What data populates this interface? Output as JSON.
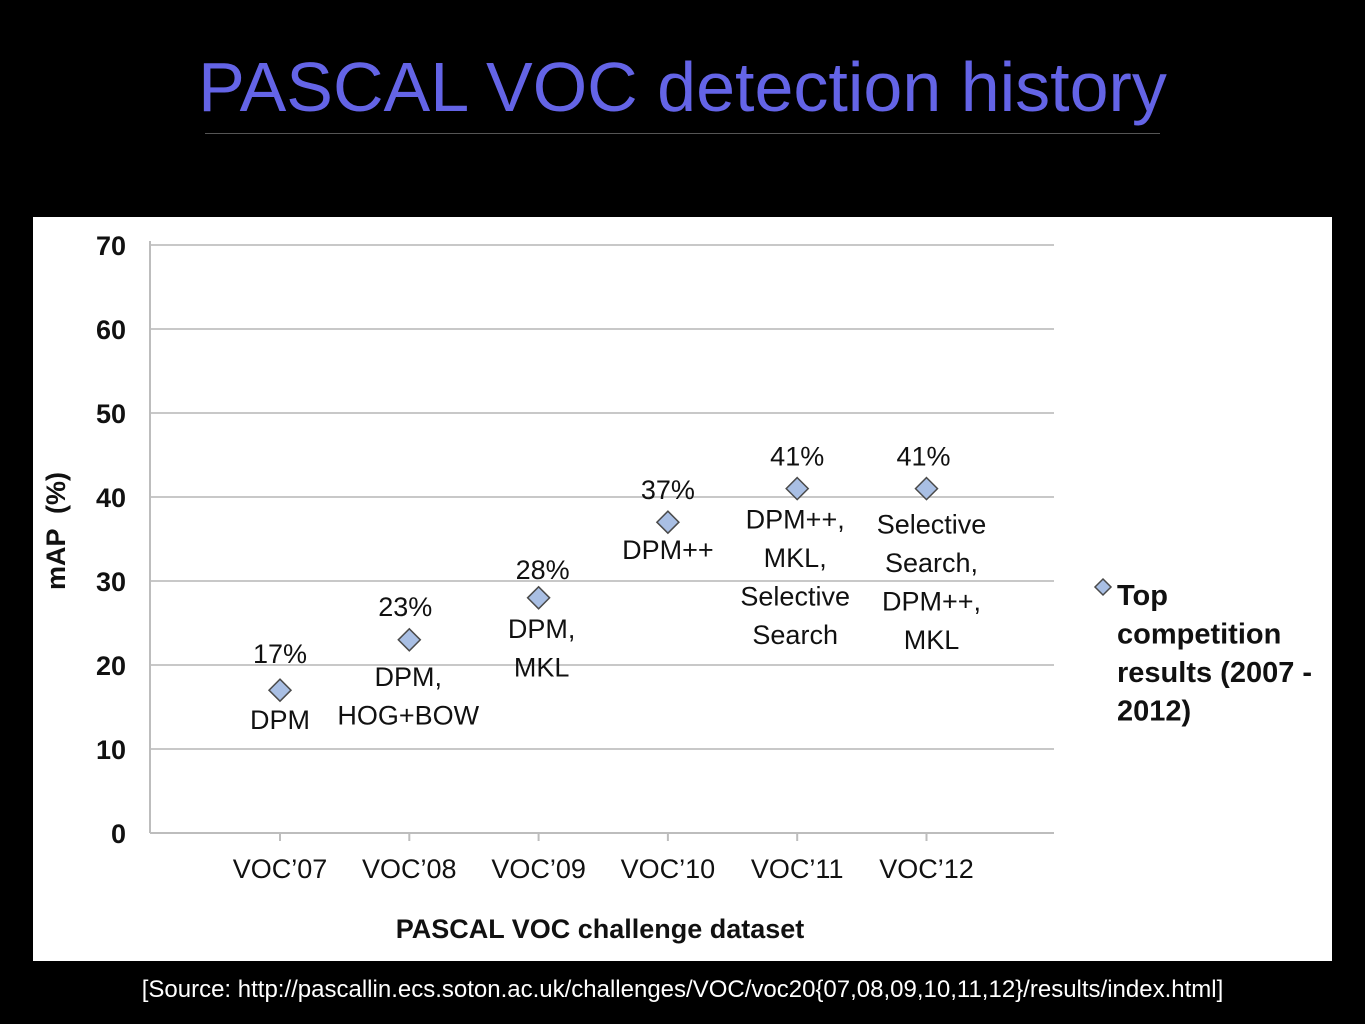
{
  "slide": {
    "title": "PASCAL VOC detection history",
    "source": "[Source: http://pascallin.ecs.soton.ac.uk/challenges/VOC/voc20{07,08,09,10,11,12}/results/index.html]"
  },
  "chart_data": {
    "type": "scatter",
    "title": "",
    "xlabel": "PASCAL VOC challenge dataset",
    "ylabel": "mAP  (%)",
    "ylim": [
      0,
      70
    ],
    "yticks": [
      "0",
      "10",
      "20",
      "30",
      "40",
      "50",
      "60",
      "70"
    ],
    "grid": true,
    "legend_position": "right",
    "categories": [
      "VOC’07",
      "VOC’08",
      "VOC’09",
      "VOC’10",
      "VOC’11",
      "VOC’12"
    ],
    "series": [
      {
        "name": "Top competition results (2007 - 2012)",
        "color": "#a9bfe4",
        "values": [
          17,
          23,
          28,
          37,
          41,
          41
        ]
      }
    ],
    "value_labels": [
      "17%",
      "23%",
      "28%",
      "37%",
      "41%",
      "41%"
    ],
    "annotations": [
      [
        "DPM"
      ],
      [
        "DPM,",
        "HOG+BOW"
      ],
      [
        "DPM,",
        "MKL"
      ],
      [
        "DPM++"
      ],
      [
        "DPM++,",
        "MKL,",
        "Selective",
        "Search"
      ],
      [
        "Selective",
        "Search,",
        "DPM++,",
        "MKL"
      ]
    ],
    "legend_lines": [
      "Top",
      "competition",
      "results (2007 -",
      "2012)"
    ]
  }
}
